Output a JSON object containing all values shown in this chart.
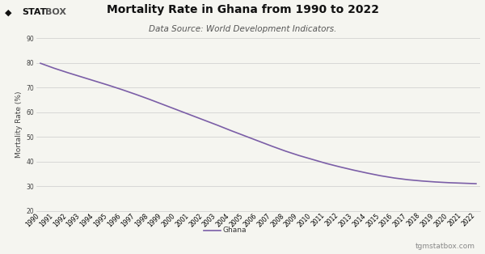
{
  "title": "Mortality Rate in Ghana from 1990 to 2022",
  "subtitle": "Data Source: World Development Indicators.",
  "ylabel": "Mortality Rate (%)",
  "line_color": "#7b5ea7",
  "background_color": "#f5f5f0",
  "grid_color": "#cccccc",
  "years": [
    1990,
    1991,
    1992,
    1993,
    1994,
    1995,
    1996,
    1997,
    1998,
    1999,
    2000,
    2001,
    2002,
    2003,
    2004,
    2005,
    2006,
    2007,
    2008,
    2009,
    2010,
    2011,
    2012,
    2013,
    2014,
    2015,
    2016,
    2017,
    2018,
    2019,
    2020,
    2021,
    2022
  ],
  "values": [
    79.8,
    77.8,
    76.0,
    74.3,
    72.6,
    70.9,
    69.1,
    67.2,
    65.2,
    63.1,
    61.0,
    58.9,
    56.8,
    54.7,
    52.5,
    50.4,
    48.3,
    46.2,
    44.2,
    42.4,
    40.8,
    39.2,
    37.8,
    36.5,
    35.3,
    34.2,
    33.3,
    32.6,
    32.1,
    31.7,
    31.4,
    31.2,
    31.0
  ],
  "ylim": [
    20,
    90
  ],
  "yticks": [
    20,
    30,
    40,
    50,
    60,
    70,
    80,
    90
  ],
  "legend_label": "Ghana",
  "watermark": "tgmstatbox.com",
  "title_fontsize": 10,
  "subtitle_fontsize": 7.5,
  "ylabel_fontsize": 6.5,
  "tick_fontsize": 5.5,
  "legend_fontsize": 6.5,
  "watermark_fontsize": 6.5,
  "logo_diamond_color": "#111111",
  "logo_stat_color": "#111111",
  "logo_box_color": "#111111",
  "header_bg": "#e8e8e0"
}
